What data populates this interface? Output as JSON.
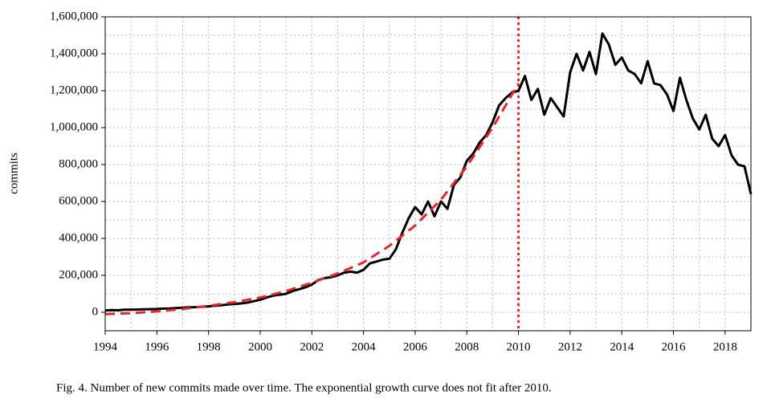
{
  "chart_data": {
    "type": "line",
    "ylabel": "commits",
    "caption": "Fig. 4.  Number of new commits made over time. The exponential growth curve does not fit after 2010.",
    "xlim": [
      1994,
      2019
    ],
    "ylim": [
      -100000,
      1600000
    ],
    "xticks": [
      1994,
      1996,
      1998,
      2000,
      2002,
      2004,
      2006,
      2008,
      2010,
      2012,
      2014,
      2016,
      2018
    ],
    "yticks": [
      0,
      {
        "value": 200000,
        "label": "200,000"
      },
      {
        "value": 400000,
        "label": "400,000"
      },
      {
        "value": 600000,
        "label": "600,000"
      },
      {
        "value": 800000,
        "label": "800,000"
      },
      {
        "value": 1000000,
        "label": "1,000,000"
      },
      {
        "value": 1200000,
        "label": "1,200,000"
      },
      {
        "value": 1400000,
        "label": "1,400,000"
      },
      {
        "value": 1600000,
        "label": "1,600,000"
      }
    ],
    "grid": true,
    "minor_grid": true,
    "vline": {
      "x": 2010,
      "color": "#e8262b"
    },
    "series": [
      {
        "color": "#000000",
        "style": "solid",
        "x": [
          1994,
          1994.25,
          1994.5,
          1994.75,
          1995,
          1995.25,
          1995.5,
          1995.75,
          1996,
          1996.25,
          1996.5,
          1996.75,
          1997,
          1997.25,
          1997.5,
          1997.75,
          1998,
          1998.25,
          1998.5,
          1998.75,
          1999,
          1999.25,
          1999.5,
          1999.75,
          2000,
          2000.25,
          2000.5,
          2000.75,
          2001,
          2001.25,
          2001.5,
          2001.75,
          2002,
          2002.25,
          2002.5,
          2002.75,
          2003,
          2003.25,
          2003.5,
          2003.75,
          2004,
          2004.25,
          2004.5,
          2004.75,
          2005,
          2005.25,
          2005.5,
          2005.75,
          2006,
          2006.25,
          2006.5,
          2006.75,
          2007,
          2007.25,
          2007.5,
          2007.75,
          2008,
          2008.25,
          2008.5,
          2008.75,
          2009,
          2009.25,
          2009.5,
          2009.75,
          2010,
          2010.25,
          2010.5,
          2010.75,
          2011,
          2011.25,
          2011.5,
          2011.75,
          2012,
          2012.25,
          2012.5,
          2012.75,
          2013,
          2013.25,
          2013.5,
          2013.75,
          2014,
          2014.25,
          2014.5,
          2014.75,
          2015,
          2015.25,
          2015.5,
          2015.75,
          2016,
          2016.25,
          2016.5,
          2016.75,
          2017,
          2017.25,
          2017.5,
          2017.75,
          2018,
          2018.25,
          2018.5,
          2018.75,
          2019
        ],
        "values": [
          10000,
          12000,
          11000,
          14000,
          14000,
          15000,
          16000,
          17000,
          18000,
          20000,
          21000,
          23000,
          25000,
          27000,
          28000,
          30000,
          32000,
          36000,
          38000,
          42000,
          45000,
          48000,
          52000,
          60000,
          68000,
          80000,
          90000,
          95000,
          100000,
          115000,
          125000,
          135000,
          150000,
          175000,
          185000,
          190000,
          200000,
          215000,
          220000,
          215000,
          230000,
          265000,
          275000,
          285000,
          290000,
          340000,
          430000,
          510000,
          570000,
          530000,
          600000,
          520000,
          600000,
          560000,
          690000,
          730000,
          820000,
          860000,
          920000,
          960000,
          1030000,
          1120000,
          1160000,
          1190000,
          1200000,
          1280000,
          1150000,
          1210000,
          1070000,
          1160000,
          1110000,
          1060000,
          1300000,
          1400000,
          1310000,
          1410000,
          1290000,
          1510000,
          1450000,
          1340000,
          1380000,
          1310000,
          1290000,
          1240000,
          1360000,
          1240000,
          1230000,
          1180000,
          1090000,
          1270000,
          1150000,
          1050000,
          990000,
          1070000,
          940000,
          900000,
          960000,
          850000,
          800000,
          790000,
          640000
        ]
      },
      {
        "color": "#e8262b",
        "style": "dashed",
        "x": [
          1994,
          1995,
          1996,
          1997,
          1998,
          1999,
          2000,
          2001,
          2002,
          2003,
          2004,
          2005,
          2006,
          2007,
          2008,
          2009,
          2010
        ],
        "values": [
          -10000,
          -5000,
          5000,
          18000,
          35000,
          55000,
          80000,
          115000,
          160000,
          210000,
          270000,
          360000,
          470000,
          610000,
          790000,
          1000000,
          1240000
        ]
      }
    ]
  }
}
